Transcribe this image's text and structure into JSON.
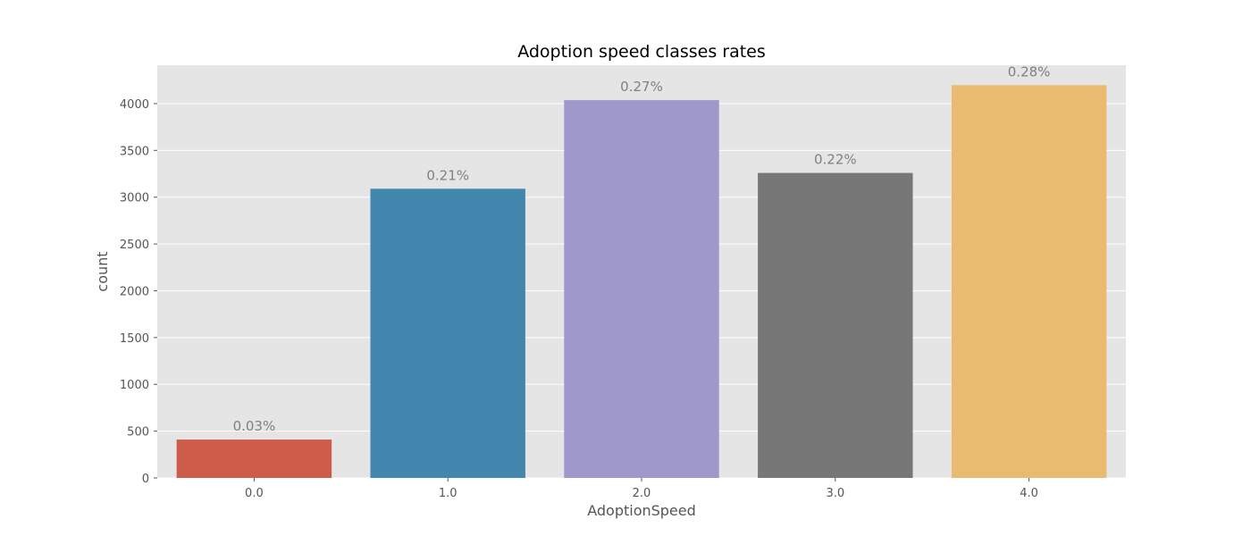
{
  "chart_data": {
    "type": "bar",
    "title": "Adoption speed classes rates",
    "xlabel": "AdoptionSpeed",
    "ylabel": "count",
    "categories": [
      "0.0",
      "1.0",
      "2.0",
      "3.0",
      "4.0"
    ],
    "values": [
      410,
      3090,
      4037,
      3259,
      4197
    ],
    "data_labels": [
      "0.03%",
      "0.21%",
      "0.27%",
      "0.22%",
      "0.28%"
    ],
    "colors": [
      "#cd5c4a",
      "#4487ae",
      "#9f98cb",
      "#777777",
      "#e8bb70"
    ],
    "ylim": [
      0,
      4410
    ],
    "yticks": [
      0,
      500,
      1000,
      1500,
      2000,
      2500,
      3000,
      3500,
      4000
    ],
    "grid": true
  }
}
